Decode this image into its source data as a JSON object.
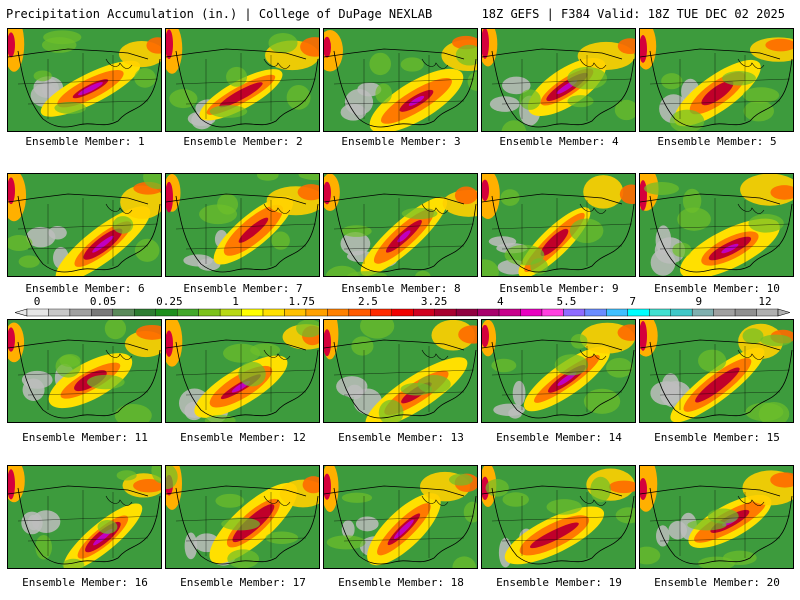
{
  "header": {
    "title": "Precipitation Accumulation (in.) | College of DuPage NEXLAB",
    "valid": "18Z GEFS | F384 Valid: 18Z TUE DEC 02 2025"
  },
  "panels": [
    {
      "label": "Ensemble Member: 1"
    },
    {
      "label": "Ensemble Member: 2"
    },
    {
      "label": "Ensemble Member: 3"
    },
    {
      "label": "Ensemble Member: 4"
    },
    {
      "label": "Ensemble Member: 5"
    },
    {
      "label": "Ensemble Member: 6"
    },
    {
      "label": "Ensemble Member: 7"
    },
    {
      "label": "Ensemble Member: 8"
    },
    {
      "label": "Ensemble Member: 9"
    },
    {
      "label": "Ensemble Member: 10"
    },
    {
      "label": "Ensemble Member: 11"
    },
    {
      "label": "Ensemble Member: 12"
    },
    {
      "label": "Ensemble Member: 13"
    },
    {
      "label": "Ensemble Member: 14"
    },
    {
      "label": "Ensemble Member: 15"
    },
    {
      "label": "Ensemble Member: 16"
    },
    {
      "label": "Ensemble Member: 17"
    },
    {
      "label": "Ensemble Member: 18"
    },
    {
      "label": "Ensemble Member: 19"
    },
    {
      "label": "Ensemble Member: 20"
    }
  ],
  "colorbar": {
    "tick_labels": [
      "0",
      "0.05",
      "0.25",
      "1",
      "1.75",
      "2.5",
      "3.25",
      "4",
      "5.5",
      "7",
      "9",
      "12"
    ],
    "colors": [
      "#e6e6e6",
      "#c8c8c8",
      "#a0a0a0",
      "#7a7a7a",
      "#5a8a5a",
      "#2e7d32",
      "#1e8f1e",
      "#43a82a",
      "#7cc21c",
      "#b8d815",
      "#ffff00",
      "#ffe000",
      "#ffc000",
      "#ffa000",
      "#ff8000",
      "#ff5a00",
      "#ff2a00",
      "#f00000",
      "#d00020",
      "#a80030",
      "#900040",
      "#a8006c",
      "#c8008c",
      "#e800c0",
      "#ff40e0",
      "#8f6bff",
      "#6a8cff",
      "#40c0ff",
      "#00ffff",
      "#40e0d0",
      "#40c8c8",
      "#80b0b0",
      "#a0a0a0",
      "#909090",
      "#b0b0b0"
    ]
  }
}
